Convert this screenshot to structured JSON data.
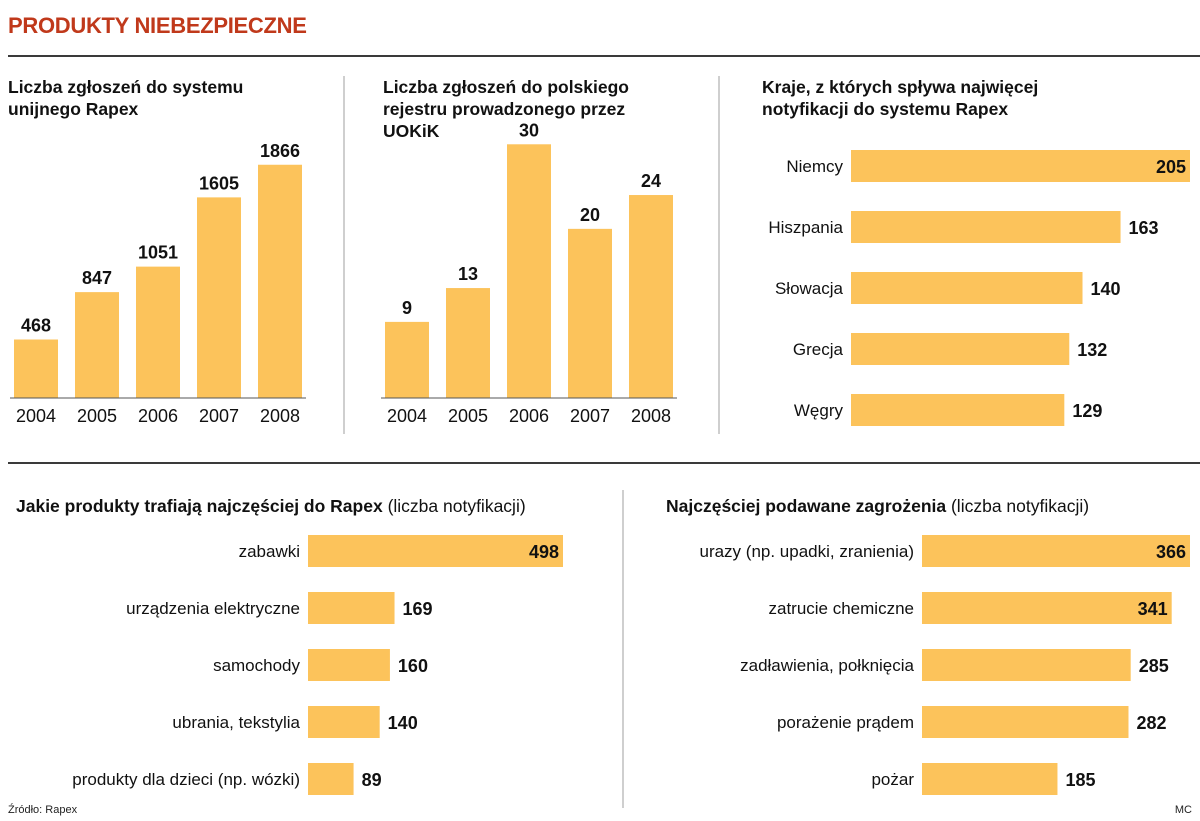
{
  "header": {
    "title": "PRODUKTY NIEBEZPIECZNE"
  },
  "colors": {
    "bar": "#fcc35b",
    "title": "#c0391b",
    "text": "#111111"
  },
  "chart_data": [
    {
      "type": "bar",
      "title": "Liczba zgłoszeń do systemu unijnego Rapex",
      "categories": [
        "2004",
        "2005",
        "2006",
        "2007",
        "2008"
      ],
      "values": [
        468,
        847,
        1051,
        1605,
        1866
      ],
      "ylim": [
        0,
        2000
      ]
    },
    {
      "type": "bar",
      "title": "Liczba zgłoszeń do polskiego rejestru prowadzonego przez UOKiK",
      "categories": [
        "2004",
        "2005",
        "2006",
        "2007",
        "2008"
      ],
      "values": [
        9,
        13,
        30,
        20,
        24
      ],
      "ylim": [
        0,
        35
      ]
    },
    {
      "type": "bar",
      "orientation": "horizontal",
      "title": "Kraje, z których spływa najwięcej notyfikacji do systemu Rapex",
      "categories": [
        "Niemcy",
        "Hiszpania",
        "Słowacja",
        "Grecja",
        "Węgry"
      ],
      "values": [
        205,
        163,
        140,
        132,
        129
      ],
      "xlim": [
        0,
        205
      ]
    },
    {
      "type": "bar",
      "orientation": "horizontal",
      "title": "Jakie produkty trafiają najczęściej do Rapex",
      "subtitle": "(liczba notyfikacji)",
      "categories": [
        "zabawki",
        "urządzenia elektryczne",
        "samochody",
        "ubrania, tekstylia",
        "produkty dla dzieci (np. wózki)"
      ],
      "values": [
        498,
        169,
        160,
        140,
        89
      ],
      "xlim": [
        0,
        498
      ]
    },
    {
      "type": "bar",
      "orientation": "horizontal",
      "title": "Najczęściej podawane zagrożenia",
      "subtitle": "(liczba notyfikacji)",
      "categories": [
        "urazy (np. upadki, zranienia)",
        "zatrucie chemiczne",
        "zadławienia, połknięcia",
        "porażenie prądem",
        "pożar"
      ],
      "values": [
        366,
        341,
        285,
        282,
        185
      ],
      "xlim": [
        0,
        366
      ]
    }
  ],
  "footer": {
    "source": "Źródło: Rapex",
    "author": "MC"
  }
}
